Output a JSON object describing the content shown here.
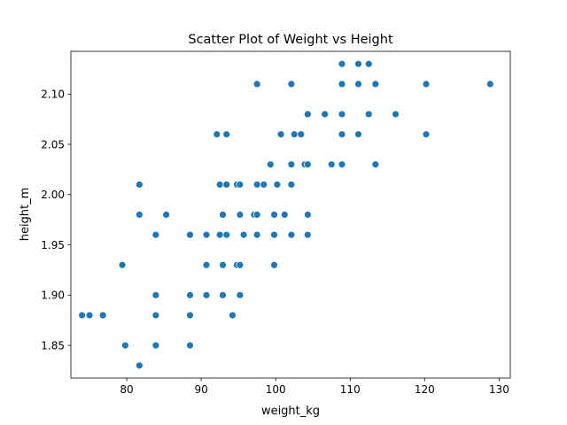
{
  "chart_data": {
    "type": "scatter",
    "title": "Scatter Plot of Weight vs Height",
    "xlabel": "weight_kg",
    "ylabel": "height_m",
    "xlim": [
      72.5,
      131.5
    ],
    "ylim": [
      1.8175,
      2.1425
    ],
    "x_ticks": [
      80,
      90,
      100,
      110,
      120,
      130
    ],
    "x_tick_labels": [
      "80",
      "90",
      "100",
      "110",
      "120",
      "130"
    ],
    "y_ticks": [
      1.85,
      1.9,
      1.95,
      2.0,
      2.05,
      2.1
    ],
    "y_tick_labels": [
      "1.85",
      "1.90",
      "1.95",
      "2.00",
      "2.05",
      "2.10"
    ],
    "grid": false,
    "marker_color": "#1f77b4",
    "points": [
      {
        "x": 74.0,
        "y": 1.88
      },
      {
        "x": 75.0,
        "y": 1.88
      },
      {
        "x": 76.8,
        "y": 1.88
      },
      {
        "x": 79.4,
        "y": 1.93
      },
      {
        "x": 79.8,
        "y": 1.85
      },
      {
        "x": 81.7,
        "y": 2.01
      },
      {
        "x": 81.7,
        "y": 1.98
      },
      {
        "x": 81.7,
        "y": 1.83
      },
      {
        "x": 83.9,
        "y": 1.96
      },
      {
        "x": 83.9,
        "y": 1.9
      },
      {
        "x": 83.9,
        "y": 1.88
      },
      {
        "x": 83.9,
        "y": 1.85
      },
      {
        "x": 85.3,
        "y": 1.98
      },
      {
        "x": 88.5,
        "y": 1.96
      },
      {
        "x": 88.5,
        "y": 1.9
      },
      {
        "x": 88.5,
        "y": 1.88
      },
      {
        "x": 88.5,
        "y": 1.85
      },
      {
        "x": 90.7,
        "y": 1.96
      },
      {
        "x": 90.7,
        "y": 1.93
      },
      {
        "x": 90.7,
        "y": 1.9
      },
      {
        "x": 92.1,
        "y": 2.06
      },
      {
        "x": 92.5,
        "y": 2.01
      },
      {
        "x": 92.5,
        "y": 1.96
      },
      {
        "x": 92.9,
        "y": 1.98
      },
      {
        "x": 92.9,
        "y": 1.93
      },
      {
        "x": 92.9,
        "y": 1.9
      },
      {
        "x": 93.4,
        "y": 2.06
      },
      {
        "x": 93.4,
        "y": 2.01
      },
      {
        "x": 93.4,
        "y": 1.96
      },
      {
        "x": 94.2,
        "y": 1.88
      },
      {
        "x": 94.8,
        "y": 2.01
      },
      {
        "x": 94.8,
        "y": 1.93
      },
      {
        "x": 95.2,
        "y": 2.01
      },
      {
        "x": 95.2,
        "y": 1.98
      },
      {
        "x": 95.2,
        "y": 1.93
      },
      {
        "x": 95.2,
        "y": 1.9
      },
      {
        "x": 95.7,
        "y": 1.96
      },
      {
        "x": 97.1,
        "y": 1.98
      },
      {
        "x": 97.5,
        "y": 2.11
      },
      {
        "x": 97.5,
        "y": 2.01
      },
      {
        "x": 97.5,
        "y": 1.98
      },
      {
        "x": 97.5,
        "y": 1.96
      },
      {
        "x": 98.4,
        "y": 2.01
      },
      {
        "x": 99.3,
        "y": 2.03
      },
      {
        "x": 99.8,
        "y": 1.98
      },
      {
        "x": 99.8,
        "y": 1.96
      },
      {
        "x": 99.8,
        "y": 1.93
      },
      {
        "x": 100.2,
        "y": 2.01
      },
      {
        "x": 100.7,
        "y": 2.06
      },
      {
        "x": 101.2,
        "y": 1.98
      },
      {
        "x": 102.1,
        "y": 2.11
      },
      {
        "x": 102.1,
        "y": 2.03
      },
      {
        "x": 102.1,
        "y": 2.01
      },
      {
        "x": 102.1,
        "y": 1.96
      },
      {
        "x": 102.5,
        "y": 2.06
      },
      {
        "x": 103.4,
        "y": 2.06
      },
      {
        "x": 103.9,
        "y": 2.03
      },
      {
        "x": 104.3,
        "y": 2.08
      },
      {
        "x": 104.3,
        "y": 2.03
      },
      {
        "x": 104.3,
        "y": 1.98
      },
      {
        "x": 104.3,
        "y": 1.96
      },
      {
        "x": 106.6,
        "y": 2.08
      },
      {
        "x": 107.5,
        "y": 2.03
      },
      {
        "x": 108.9,
        "y": 2.13
      },
      {
        "x": 108.9,
        "y": 2.11
      },
      {
        "x": 108.9,
        "y": 2.08
      },
      {
        "x": 108.9,
        "y": 2.06
      },
      {
        "x": 108.9,
        "y": 2.03
      },
      {
        "x": 111.1,
        "y": 2.13
      },
      {
        "x": 111.1,
        "y": 2.11
      },
      {
        "x": 111.1,
        "y": 2.06
      },
      {
        "x": 112.5,
        "y": 2.13
      },
      {
        "x": 112.5,
        "y": 2.08
      },
      {
        "x": 113.4,
        "y": 2.11
      },
      {
        "x": 113.4,
        "y": 2.03
      },
      {
        "x": 116.1,
        "y": 2.08
      },
      {
        "x": 120.2,
        "y": 2.11
      },
      {
        "x": 120.2,
        "y": 2.06
      },
      {
        "x": 128.8,
        "y": 2.11
      }
    ]
  }
}
